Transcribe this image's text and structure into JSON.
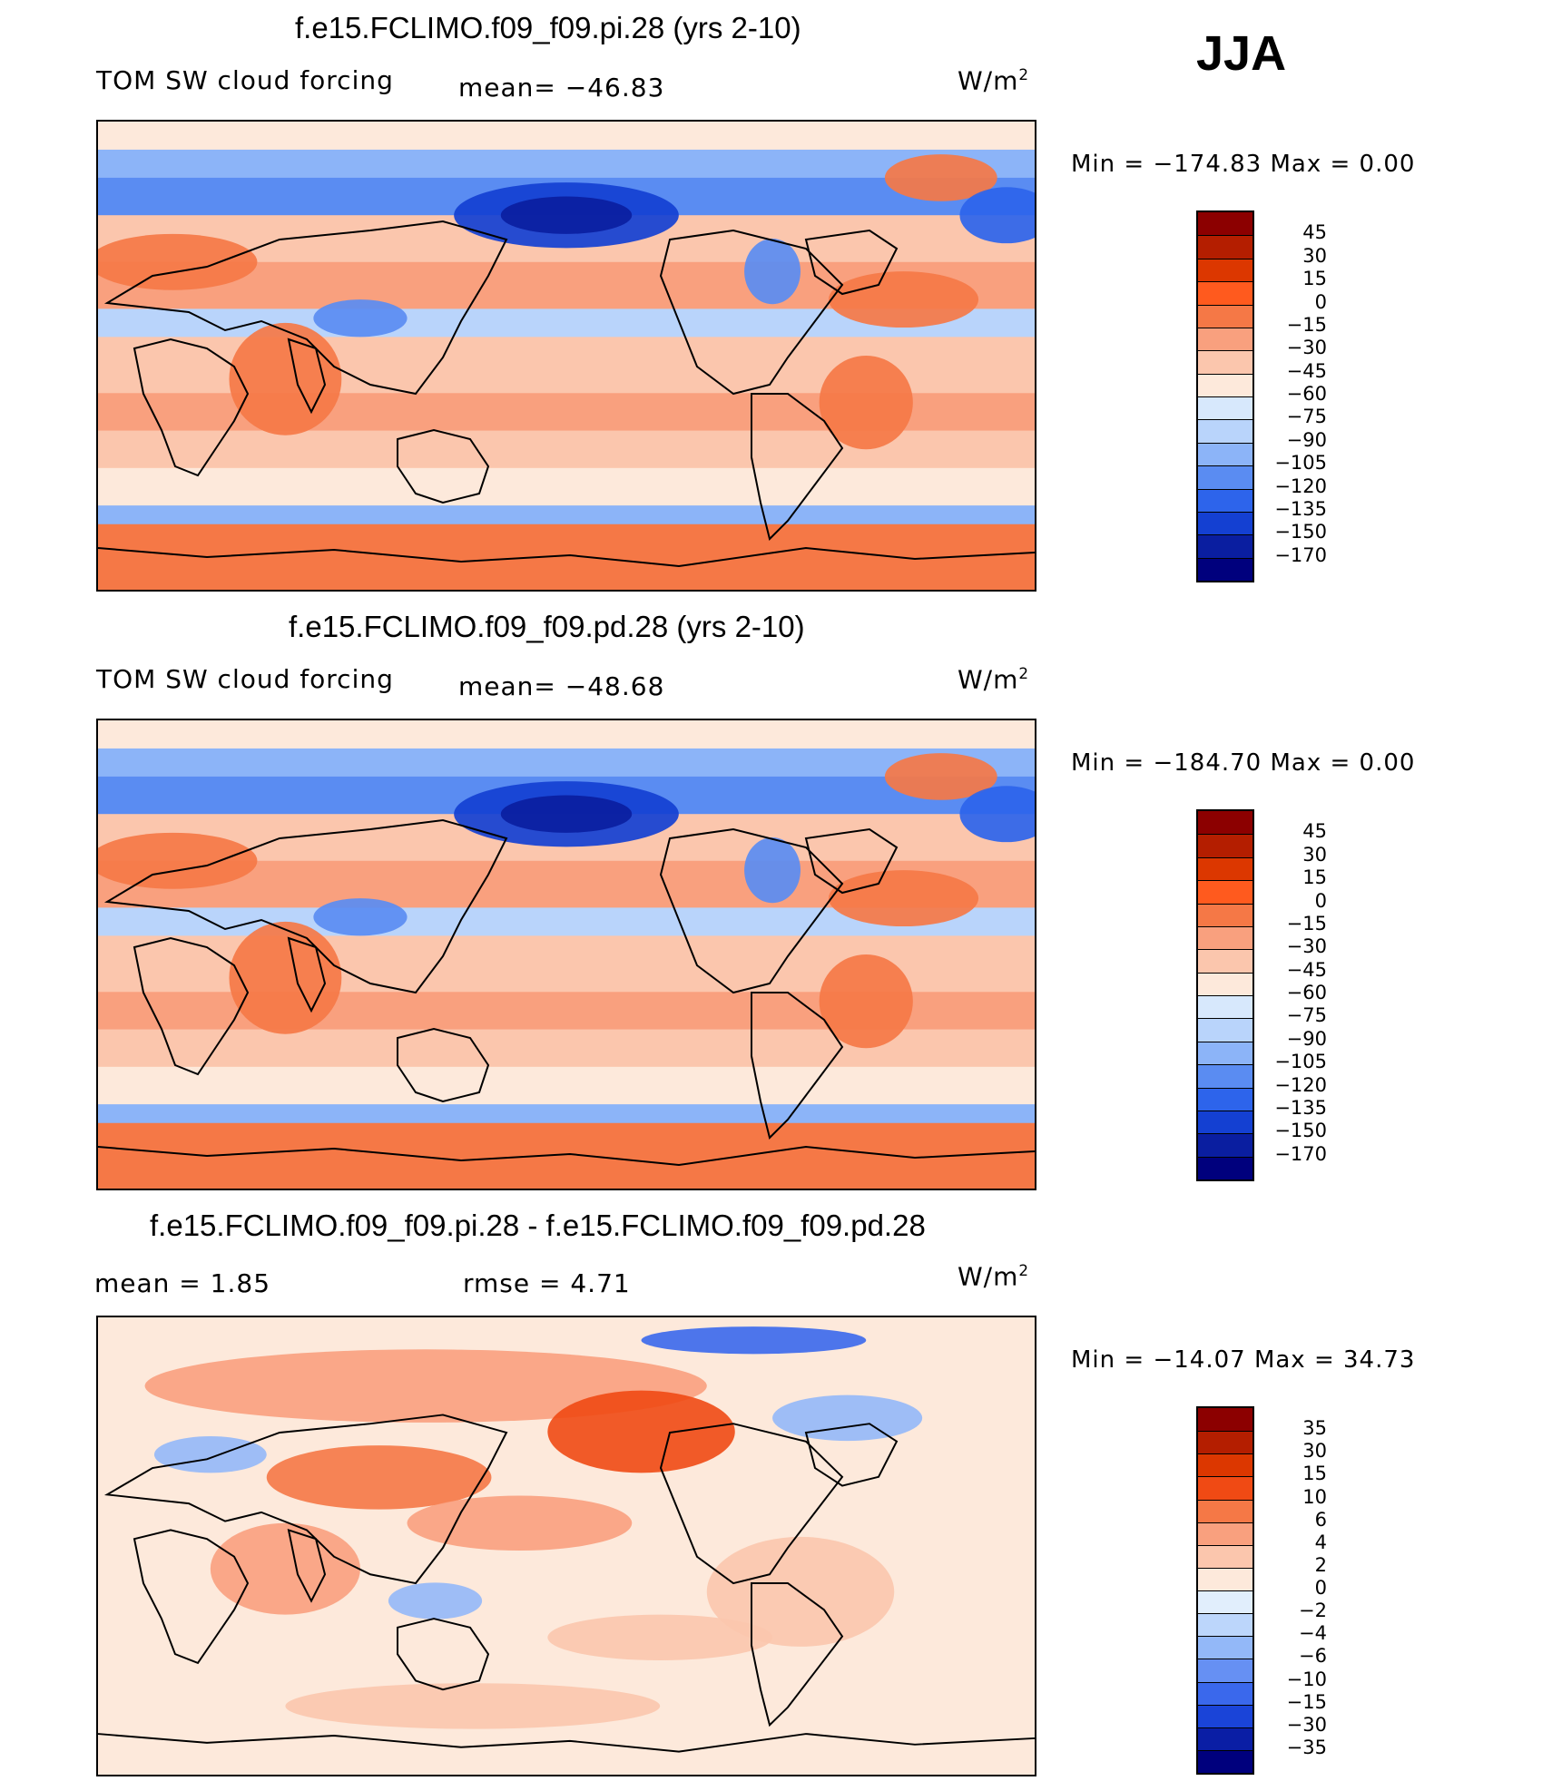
{
  "season": "JJA",
  "colors": {
    "pos_palette": [
      "#e86a3c",
      "#f08a5c",
      "#f7b08f",
      "#fcd3bd",
      "#fde9db"
    ],
    "neg_palette": [
      "#0000a0",
      "#0a1ec8",
      "#1e46e6",
      "#3c6ef0",
      "#6e96f6",
      "#9ebef8",
      "#c8dcfa",
      "#e6f0fc"
    ],
    "coast": "#000000"
  },
  "chart_data": [
    {
      "type": "heatmap",
      "title": "f.e15.FCLIMO.f09_f09.pi.28 (yrs 2-10)",
      "variable": "TOM SW cloud forcing",
      "stat_text": "mean=  −46.83",
      "mean": -46.83,
      "units_base": "W/m",
      "units_exp": "2",
      "min_text": "Min  =  −174.83",
      "max_text": "Max  =     0.00",
      "min": -174.83,
      "max": 0.0,
      "colorbar": {
        "labels": [
          "45",
          "30",
          "15",
          "0",
          "−15",
          "−30",
          "−45",
          "−60",
          "−75",
          "−90",
          "−105",
          "−120",
          "−135",
          "−150",
          "−170"
        ],
        "colors": [
          "#8c0000",
          "#b41e00",
          "#dc3700",
          "#ff5a1e",
          "#f57846",
          "#f9a07e",
          "#fbc6ad",
          "#fde9db",
          "#d7e8fc",
          "#b9d4fb",
          "#8cb4f8",
          "#5a8cf2",
          "#2d64eb",
          "#1440d2",
          "#0a1ea0",
          "#00007d"
        ]
      }
    },
    {
      "type": "heatmap",
      "title": "f.e15.FCLIMO.f09_f09.pd.28 (yrs 2-10)",
      "variable": "TOM SW cloud forcing",
      "stat_text": "mean=  −48.68",
      "mean": -48.68,
      "units_base": "W/m",
      "units_exp": "2",
      "min_text": "Min  =  −184.70",
      "max_text": "Max  =     0.00",
      "min": -184.7,
      "max": 0.0,
      "colorbar": {
        "labels": [
          "45",
          "30",
          "15",
          "0",
          "−15",
          "−30",
          "−45",
          "−60",
          "−75",
          "−90",
          "−105",
          "−120",
          "−135",
          "−150",
          "−170"
        ],
        "colors": [
          "#8c0000",
          "#b41e00",
          "#dc3700",
          "#ff5a1e",
          "#f57846",
          "#f9a07e",
          "#fbc6ad",
          "#fde9db",
          "#d7e8fc",
          "#b9d4fb",
          "#8cb4f8",
          "#5a8cf2",
          "#2d64eb",
          "#1440d2",
          "#0a1ea0",
          "#00007d"
        ]
      }
    },
    {
      "type": "heatmap",
      "title": "f.e15.FCLIMO.f09_f09.pi.28 - f.e15.FCLIMO.f09_f09.pd.28",
      "mean_text": "mean  =     1.85",
      "rmse_text": "rmse  =     4.71",
      "mean": 1.85,
      "rmse": 4.71,
      "units_base": "W/m",
      "units_exp": "2",
      "min_text": "Min  =  −14.07",
      "max_text": "Max  =   34.73",
      "min": -14.07,
      "max": 34.73,
      "colorbar": {
        "labels": [
          "35",
          "30",
          "15",
          "10",
          "6",
          "4",
          "2",
          "0",
          "−2",
          "−4",
          "−6",
          "−10",
          "−15",
          "−30",
          "−35"
        ],
        "colors": [
          "#8c0000",
          "#b41e00",
          "#dc3700",
          "#f04a14",
          "#f57846",
          "#f9a07e",
          "#fbc6ad",
          "#fde9db",
          "#e1eefc",
          "#bcd6fb",
          "#93b8f8",
          "#6690f3",
          "#3a68ec",
          "#1a44d8",
          "#0a1ea5",
          "#00007d"
        ]
      }
    }
  ]
}
